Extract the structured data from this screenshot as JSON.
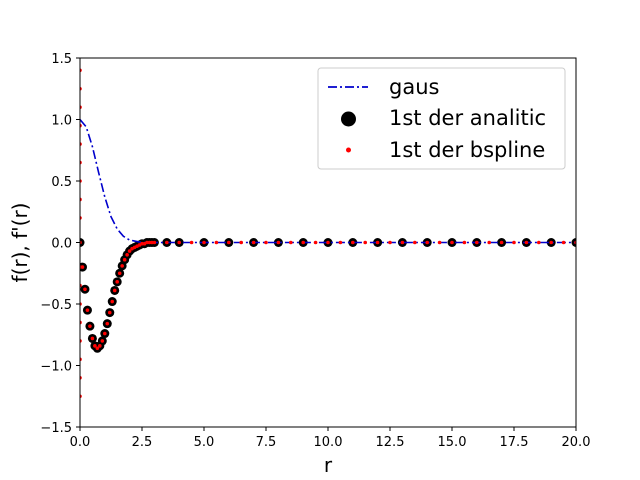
{
  "chart_data": {
    "type": "line",
    "xlabel": "r",
    "ylabel": "f(r), f'(r)",
    "xlim": [
      0,
      20
    ],
    "ylim": [
      -1.5,
      1.5
    ],
    "xticks": [
      0,
      2.5,
      5,
      7.5,
      10,
      12.5,
      15,
      17.5,
      20
    ],
    "xtick_labels": [
      "0.0",
      "2.5",
      "5.0",
      "7.5",
      "10.0",
      "12.5",
      "15.0",
      "17.5",
      "20.0"
    ],
    "yticks": [
      -1.5,
      -1,
      -0.5,
      0,
      0.5,
      1,
      1.5
    ],
    "ytick_labels": [
      "−1.5",
      "−1.0",
      "−0.5",
      "0.0",
      "0.5",
      "1.0",
      "1.5"
    ],
    "grid": false,
    "legend_position": "upper-right",
    "series": [
      {
        "name": "gaus",
        "style": "dash-dot line",
        "color": "#0000cc",
        "x": [
          0,
          0.25,
          0.5,
          0.75,
          1,
          1.25,
          1.5,
          1.75,
          2,
          2.25,
          2.5,
          2.75,
          3,
          4,
          6,
          8,
          10,
          12,
          14,
          16,
          18,
          20
        ],
        "y": [
          1,
          0.94,
          0.78,
          0.57,
          0.37,
          0.21,
          0.11,
          0.05,
          0.02,
          0.01,
          0,
          0,
          0,
          0,
          0,
          0,
          0,
          0,
          0,
          0,
          0,
          0
        ]
      },
      {
        "name": "1st der analitic",
        "style": "large black dots",
        "color": "#000000",
        "x": [
          0,
          0.1,
          0.2,
          0.3,
          0.4,
          0.5,
          0.6,
          0.7,
          0.8,
          0.9,
          1,
          1.1,
          1.2,
          1.3,
          1.4,
          1.5,
          1.6,
          1.7,
          1.8,
          1.9,
          2,
          2.1,
          2.2,
          2.3,
          2.4,
          2.5,
          2.6,
          2.7,
          2.8,
          2.9,
          3,
          3.5,
          4,
          5,
          6,
          7,
          8,
          9,
          10,
          11,
          12,
          13,
          14,
          15,
          16,
          17,
          18,
          19,
          20
        ],
        "y": [
          0,
          -0.2,
          -0.38,
          -0.55,
          -0.68,
          -0.78,
          -0.84,
          -0.86,
          -0.84,
          -0.8,
          -0.74,
          -0.66,
          -0.57,
          -0.48,
          -0.39,
          -0.32,
          -0.25,
          -0.19,
          -0.14,
          -0.1,
          -0.07,
          -0.05,
          -0.04,
          -0.03,
          -0.02,
          -0.01,
          -0.01,
          0,
          0,
          0,
          0,
          0,
          0,
          0,
          0,
          0,
          0,
          0,
          0,
          0,
          0,
          0,
          0,
          0,
          0,
          0,
          0,
          0,
          0
        ]
      },
      {
        "name": "1st der bspline",
        "style": "small red dots",
        "color": "#ff0000",
        "x": [
          0,
          0.1,
          0.2,
          0.3,
          0.4,
          0.5,
          0.6,
          0.7,
          0.8,
          0.9,
          1,
          1.1,
          1.2,
          1.3,
          1.4,
          1.5,
          1.6,
          1.7,
          1.8,
          1.9,
          2,
          2.1,
          2.2,
          2.3,
          2.4,
          2.5,
          2.6,
          2.7,
          2.8,
          2.9,
          3,
          3.5,
          4,
          4.5,
          5,
          5.5,
          6,
          6.5,
          7,
          7.5,
          8,
          8.5,
          9,
          9.5,
          10,
          10.5,
          11,
          11.5,
          12,
          12.5,
          13,
          13.5,
          14,
          14.5,
          15,
          15.5,
          16,
          16.5,
          17,
          17.5,
          18,
          18.5,
          19,
          19.5,
          20
        ],
        "y": [
          0,
          -0.2,
          -0.38,
          -0.55,
          -0.68,
          -0.78,
          -0.84,
          -0.86,
          -0.84,
          -0.8,
          -0.74,
          -0.66,
          -0.57,
          -0.48,
          -0.39,
          -0.32,
          -0.25,
          -0.19,
          -0.14,
          -0.1,
          -0.07,
          -0.05,
          -0.04,
          -0.03,
          -0.02,
          -0.01,
          -0.01,
          0,
          0,
          0,
          0,
          0,
          0,
          0,
          0,
          0,
          0,
          0,
          0,
          0,
          0,
          0,
          0,
          0,
          0,
          0,
          0,
          0,
          0,
          0,
          0,
          0,
          0,
          0,
          0,
          0,
          0,
          0,
          0,
          0,
          0,
          0,
          0,
          0,
          0
        ]
      },
      {
        "name": "",
        "style": "red dots along r = 0",
        "color": "#ff0000",
        "x": [
          0,
          0,
          0,
          0,
          0,
          0,
          0,
          0,
          0,
          0,
          0,
          0,
          0,
          0,
          0,
          0,
          0
        ],
        "y": [
          1.4,
          1.25,
          1.1,
          0.95,
          0.8,
          0.65,
          0.5,
          0.35,
          0.2,
          -0.2,
          -0.35,
          -0.5,
          -0.65,
          -0.8,
          -0.95,
          -1.1,
          -1.25
        ]
      }
    ]
  }
}
